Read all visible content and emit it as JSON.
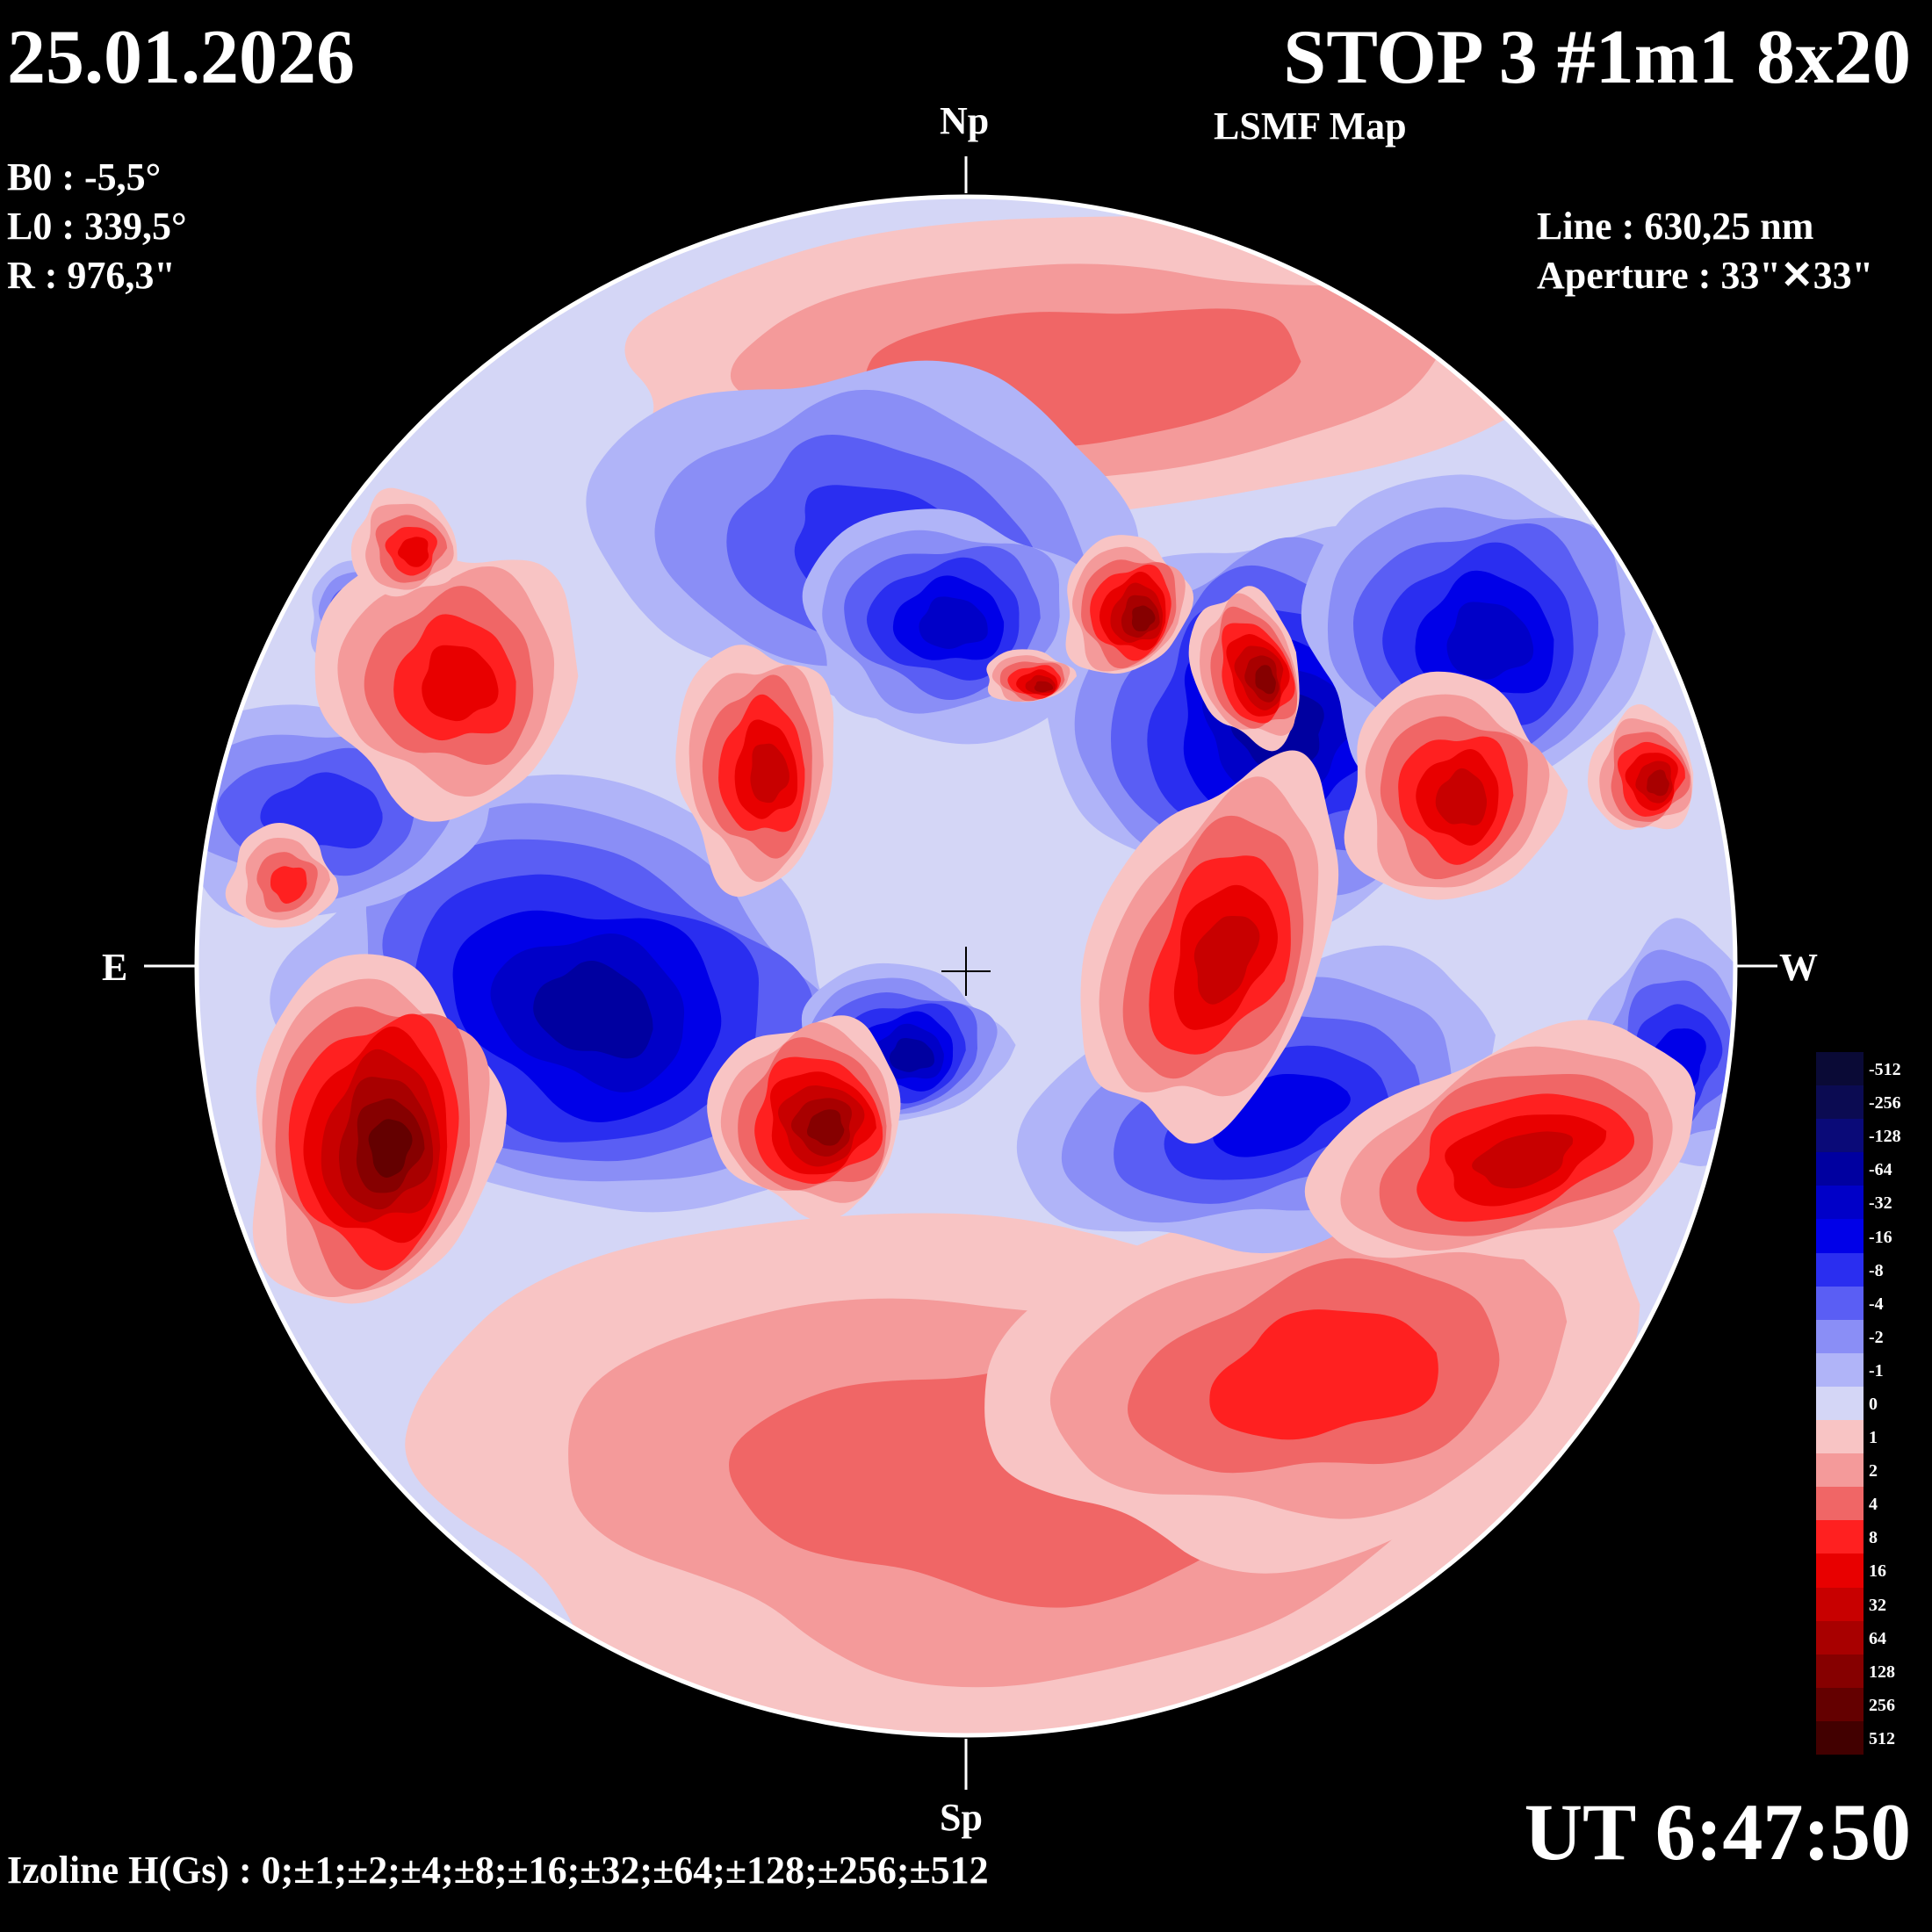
{
  "header": {
    "date": "25.01.2026",
    "title": "STOP 3 #1m1 8x20",
    "subtitle": "LSMF  Map"
  },
  "params": {
    "b0": "B0 : -5,5°",
    "l0": "L0 : 339,5°",
    "r": "R  : 976,3\""
  },
  "instrument": {
    "line": "Line :  630,25 nm",
    "aperture": "Aperture : 33\"✕33\""
  },
  "directions": {
    "north": "Np",
    "south": "Sp",
    "east": "E",
    "west": "W"
  },
  "time": "UT 6:47:50",
  "izoline": "Izoline H(Gs) : 0;±1;±2;±4;±8;±16;±32;±64;±128;±256;±512",
  "colorbar": {
    "levels": [
      {
        "label": "-512",
        "color": "#0a0a36"
      },
      {
        "label": "-256",
        "color": "#0b0b52"
      },
      {
        "label": "-128",
        "color": "#0a0a78"
      },
      {
        "label": "-64",
        "color": "#0000a0"
      },
      {
        "label": "-32",
        "color": "#0000c8"
      },
      {
        "label": "-16",
        "color": "#0000e8"
      },
      {
        "label": "-8",
        "color": "#2a2ef0"
      },
      {
        "label": "-4",
        "color": "#5a5ef4"
      },
      {
        "label": "-2",
        "color": "#8a8ef6"
      },
      {
        "label": "-1",
        "color": "#b0b4f8"
      },
      {
        "label": "0",
        "color": "#d4d6f6"
      },
      {
        "label": "1",
        "color": "#f8c4c4"
      },
      {
        "label": "2",
        "color": "#f49a9a"
      },
      {
        "label": "4",
        "color": "#f06666"
      },
      {
        "label": "8",
        "color": "#ff2020"
      },
      {
        "label": "16",
        "color": "#e80000"
      },
      {
        "label": "32",
        "color": "#c80000"
      },
      {
        "label": "64",
        "color": "#a80000"
      },
      {
        "label": "128",
        "color": "#860000"
      },
      {
        "label": "256",
        "color": "#640000"
      },
      {
        "label": "512",
        "color": "#420000"
      }
    ]
  },
  "map": {
    "positive_colors": [
      "#f8c4c4",
      "#f49a9a",
      "#f06666",
      "#ff2020",
      "#e80000",
      "#c80000",
      "#a80000",
      "#860000",
      "#640000"
    ],
    "negative_colors": [
      "#b0b4f8",
      "#8a8ef6",
      "#5a5ef4",
      "#2a2ef0",
      "#0000e8",
      "#0000c8",
      "#0000a0",
      "#0a0a78",
      "#0b0b52"
    ],
    "background_color": "#d4d6f6"
  }
}
